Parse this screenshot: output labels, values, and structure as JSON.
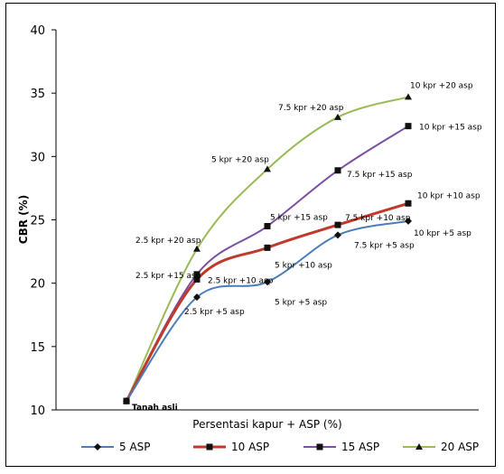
{
  "chart_data": {
    "type": "line",
    "title": "",
    "xlabel": "Persentasi kapur + ASP (%)",
    "ylabel": "CBR (%)",
    "ylim": [
      10,
      40
    ],
    "yticks": [
      10,
      15,
      20,
      25,
      30,
      35,
      40
    ],
    "grid": false,
    "legend_position": "bottom",
    "colors": {
      "5 ASP": "#4a7ebb",
      "10 ASP": "#c0392b",
      "15 ASP": "#7b4fa2",
      "20 ASP": "#9bbb59"
    },
    "series": [
      {
        "name": "5 ASP",
        "marker": "diamond",
        "values": [
          10.7,
          18.9,
          20.1,
          23.8,
          24.9
        ],
        "labels": [
          "Tanah asli",
          "2.5 kpr +5 asp",
          "5 kpr +5 asp",
          "7.5 kpr +5 asp",
          "10 kpr +5 asp"
        ]
      },
      {
        "name": "10 ASP",
        "marker": "square",
        "values": [
          10.7,
          20.3,
          22.8,
          24.6,
          26.3
        ],
        "labels": [
          "",
          "2.5 kpr +10 asp",
          "5 kpr +10 asp",
          "7.5 kpr +10 asp",
          "10 kpr +10 asp"
        ]
      },
      {
        "name": "15 ASP",
        "marker": "square",
        "values": [
          10.7,
          20.7,
          24.5,
          28.9,
          32.4
        ],
        "labels": [
          "",
          "2.5 kpr +15 asp",
          "5 kpr +15 asp",
          "7.5 kpr +15 asp",
          "10 kpr +15 asp"
        ]
      },
      {
        "name": "20 ASP",
        "marker": "triangle",
        "values": [
          10.7,
          22.7,
          29.0,
          33.1,
          34.7
        ],
        "labels": [
          "",
          "2.5 kpr +20 asp",
          "5 kpr +20 asp",
          "7.5 kpr +20 asp",
          "10 kpr +20 asp"
        ]
      }
    ]
  }
}
